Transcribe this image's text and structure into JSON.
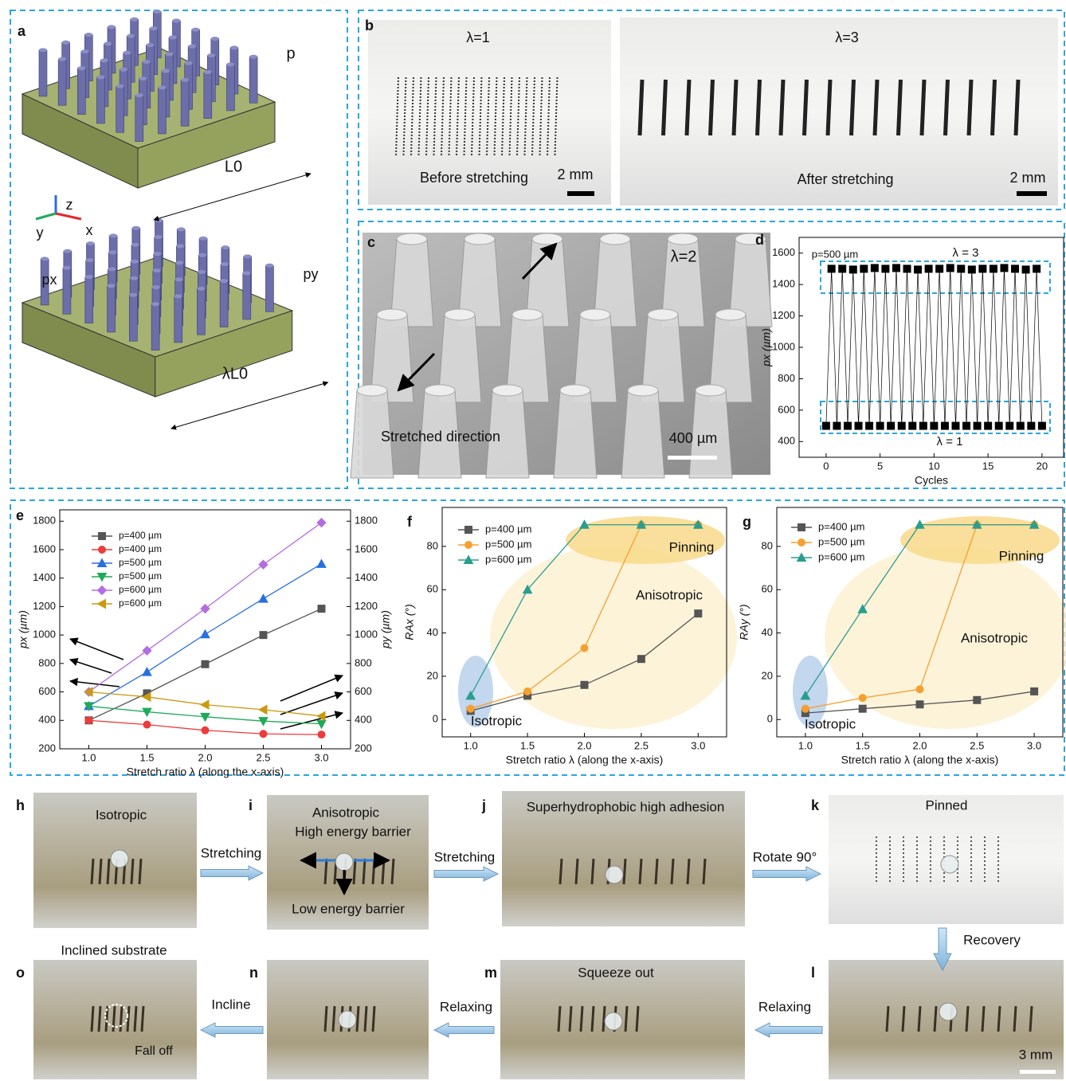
{
  "chart_data": [
    {
      "type": "line",
      "x": [
        0,
        0.5,
        1,
        1.5,
        2,
        2.5,
        3,
        3.5,
        4,
        4.5,
        5,
        5.5,
        6,
        6.5,
        7,
        7.5,
        8,
        8.5,
        9,
        9.5,
        10,
        10.5,
        11,
        11.5,
        12,
        12.5,
        13,
        13.5,
        14,
        14.5,
        15,
        15.5,
        16,
        16.5,
        17,
        17.5,
        18,
        18.5,
        19,
        19.5,
        20
      ],
      "series": [
        {
          "name": "p=500 µm",
          "color": "#000000",
          "marker": "square",
          "values": [
            500,
            1500,
            500,
            1500,
            500,
            1495,
            500,
            1500,
            500,
            1505,
            500,
            1500,
            500,
            1505,
            500,
            1500,
            500,
            1495,
            500,
            1500,
            500,
            1500,
            500,
            1505,
            500,
            1500,
            500,
            1495,
            500,
            1500,
            500,
            1500,
            500,
            1505,
            500,
            1500,
            500,
            1495,
            500,
            1500,
            500
          ]
        }
      ],
      "xlim": [
        -2.5,
        22
      ],
      "xticks": [
        0,
        5,
        10,
        15,
        20
      ],
      "ylim": [
        300,
        1700
      ],
      "yticks": [
        400,
        600,
        800,
        1000,
        1200,
        1400,
        1600
      ],
      "x_label": "Cycles",
      "y_label": "px (µm)",
      "annotations": [
        "p=500 µm",
        "λ = 3",
        "λ = 1"
      ],
      "legend": "none"
    },
    {
      "type": "line",
      "x": [
        1,
        1.5,
        2,
        2.5,
        3
      ],
      "series": [
        {
          "name": "p=400 µm",
          "color": "#555555",
          "marker": "square",
          "values": [
            400,
            590,
            795,
            1000,
            1185
          ]
        },
        {
          "name": "p=400 µm",
          "color": "#ee3b3b",
          "marker": "circle",
          "axis": "y2",
          "values": [
            400,
            370,
            330,
            305,
            300
          ]
        },
        {
          "name": "p=500 µm",
          "color": "#2a6fe0",
          "marker": "triangle",
          "values": [
            500,
            740,
            1005,
            1255,
            1500
          ]
        },
        {
          "name": "p=500 µm",
          "color": "#1faa5a",
          "marker": "down-triangle",
          "axis": "y2",
          "values": [
            500,
            460,
            425,
            395,
            375
          ]
        },
        {
          "name": "p=600 µm",
          "color": "#b36ee0",
          "marker": "diamond",
          "values": [
            600,
            890,
            1185,
            1495,
            1790
          ]
        },
        {
          "name": "p=600 µm",
          "color": "#c99a10",
          "marker": "left-triangle",
          "axis": "y2",
          "values": [
            600,
            565,
            510,
            475,
            430
          ]
        }
      ],
      "xlim": [
        0.75,
        3.25
      ],
      "xticks": [
        {
          "value": 1,
          "label": "1.0"
        },
        {
          "value": 1.5,
          "label": "1.5"
        },
        {
          "value": 2,
          "label": "2.0"
        },
        {
          "value": 2.5,
          "label": "2.5"
        },
        {
          "value": 3,
          "label": "3.0"
        }
      ],
      "ylim": [
        200,
        1880
      ],
      "yticks": [
        200,
        400,
        600,
        800,
        1000,
        1200,
        1400,
        1600,
        1800
      ],
      "y2lim": [
        200,
        1880
      ],
      "y2ticks": [
        200,
        400,
        600,
        800,
        1000,
        1200,
        1400,
        1600,
        1800
      ],
      "x_label": "Stretch ratio λ (along the x-axis)",
      "y_label": "px (µm)",
      "y2_label": "py (µm)",
      "annotations": [],
      "legend": "upper left"
    },
    {
      "type": "line",
      "x": [
        1,
        1.5,
        2,
        2.5,
        3
      ],
      "series": [
        {
          "name": "p=400 µm",
          "color": "#555555",
          "marker": "square",
          "values": [
            4,
            11,
            16,
            28,
            49
          ]
        },
        {
          "name": "p=500 µm",
          "color": "#f5a030",
          "marker": "circle",
          "values": [
            5,
            13,
            33,
            90,
            90
          ]
        },
        {
          "name": "p=600 µm",
          "color": "#2a9d8f",
          "marker": "triangle",
          "values": [
            11,
            60,
            90,
            90,
            90
          ]
        }
      ],
      "xlim": [
        0.75,
        3.25
      ],
      "xticks": [
        {
          "value": 1,
          "label": "1.0"
        },
        {
          "value": 1.5,
          "label": "1.5"
        },
        {
          "value": 2,
          "label": "2.0"
        },
        {
          "value": 2.5,
          "label": "2.5"
        },
        {
          "value": 3,
          "label": "3.0"
        }
      ],
      "ylim": [
        -8,
        98
      ],
      "yticks": [
        0,
        20,
        40,
        60,
        80
      ],
      "x_label": "Stretch ratio λ (along the x-axis)",
      "y_label": "RAx (°)",
      "annotations": [
        "Pinning",
        "Anisotropic",
        "Isotropic"
      ],
      "legend": "upper left"
    },
    {
      "type": "line",
      "x": [
        1,
        1.5,
        2,
        2.5,
        3
      ],
      "series": [
        {
          "name": "p=400 µm",
          "color": "#555555",
          "marker": "square",
          "values": [
            3,
            5,
            7,
            9,
            13
          ]
        },
        {
          "name": "p=500 µm",
          "color": "#f5a030",
          "marker": "circle",
          "values": [
            5,
            10,
            14,
            90,
            90
          ]
        },
        {
          "name": "p=600 µm",
          "color": "#2a9d8f",
          "marker": "triangle",
          "values": [
            11,
            51,
            90,
            90,
            90
          ]
        }
      ],
      "xlim": [
        0.75,
        3.25
      ],
      "xticks": [
        {
          "value": 1,
          "label": "1.0"
        },
        {
          "value": 1.5,
          "label": "1.5"
        },
        {
          "value": 2,
          "label": "2.0"
        },
        {
          "value": 2.5,
          "label": "2.5"
        },
        {
          "value": 3,
          "label": "3.0"
        }
      ],
      "ylim": [
        -8,
        98
      ],
      "yticks": [
        0,
        20,
        40,
        60,
        80
      ],
      "x_label": "Stretch ratio λ (along the x-axis)",
      "y_label": "RAy (°)",
      "annotations": [
        "Pinning",
        "Anisotropic",
        "Isotropic"
      ],
      "legend": "upper left"
    }
  ],
  "panels": {
    "a": {
      "label": "a",
      "p": "p",
      "L0": "L0",
      "px": "px",
      "py": "py",
      "lambdaL0": "λL0",
      "z": "z",
      "y": "y",
      "x": "x"
    },
    "b": {
      "label": "b",
      "left_title": "λ=1",
      "right_title": "λ=3",
      "left_caption": "Before stretching",
      "right_caption": "After stretching",
      "left_scale": "2 mm",
      "right_scale": "2 mm"
    },
    "c": {
      "label": "c",
      "title": "λ=2",
      "caption": "Stretched direction",
      "scale": "400 µm"
    },
    "d": {
      "label": "d"
    },
    "e": {
      "label": "e"
    },
    "f": {
      "label": "f"
    },
    "g": {
      "label": "g"
    },
    "h": {
      "label": "h",
      "text": "Isotropic"
    },
    "i": {
      "label": "i",
      "text": "Anisotropic",
      "high": "High energy barrier",
      "low": "Low energy barrier"
    },
    "j": {
      "label": "j",
      "text": "Superhydrophobic high adhesion"
    },
    "k": {
      "label": "k",
      "text": "Pinned"
    },
    "l": {
      "label": "l",
      "scale": "3 mm"
    },
    "m": {
      "label": "m",
      "text": "Squeeze out"
    },
    "n": {
      "label": "n"
    },
    "o": {
      "label": "o",
      "text": "Inclined substrate",
      "note": "Fall off"
    }
  },
  "steps": [
    "Stretching",
    "Stretching",
    "Rotate 90°",
    "Recovery",
    "Relaxing",
    "Relaxing",
    "Incline"
  ]
}
